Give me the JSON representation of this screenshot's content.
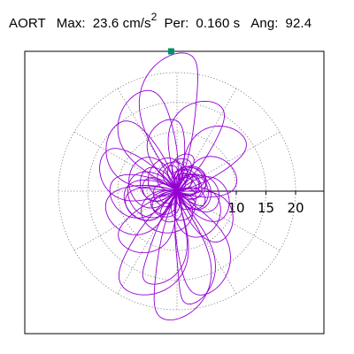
{
  "header": {
    "label": "AORT",
    "max_label": "Max:",
    "max_value": "23.6",
    "max_unit": "cm/s",
    "max_unit_exp": "2",
    "per_label": "Per:",
    "per_value": "0.160 s",
    "ang_label": "Ang:",
    "ang_value": "92.4"
  },
  "chart_data": {
    "type": "scatter",
    "subtype": "polar-loop",
    "title": "AORT",
    "max_value": 23.6,
    "max_unit": "cm/s2",
    "period_s": 0.16,
    "angle_deg": 92.4,
    "r_ticks": [
      10,
      15,
      20
    ],
    "r_ring_step": 5,
    "r_max_grid": 20,
    "grid": true,
    "grid_style": "dotted",
    "radial_lines_deg": [
      0,
      30,
      60,
      90,
      120,
      150,
      180,
      210,
      240,
      270,
      300,
      330
    ],
    "trace_color": "#9400d3",
    "marker_color": "#00906e",
    "peak_marker": {
      "r": 23.6,
      "angle_deg": 92.4
    }
  }
}
